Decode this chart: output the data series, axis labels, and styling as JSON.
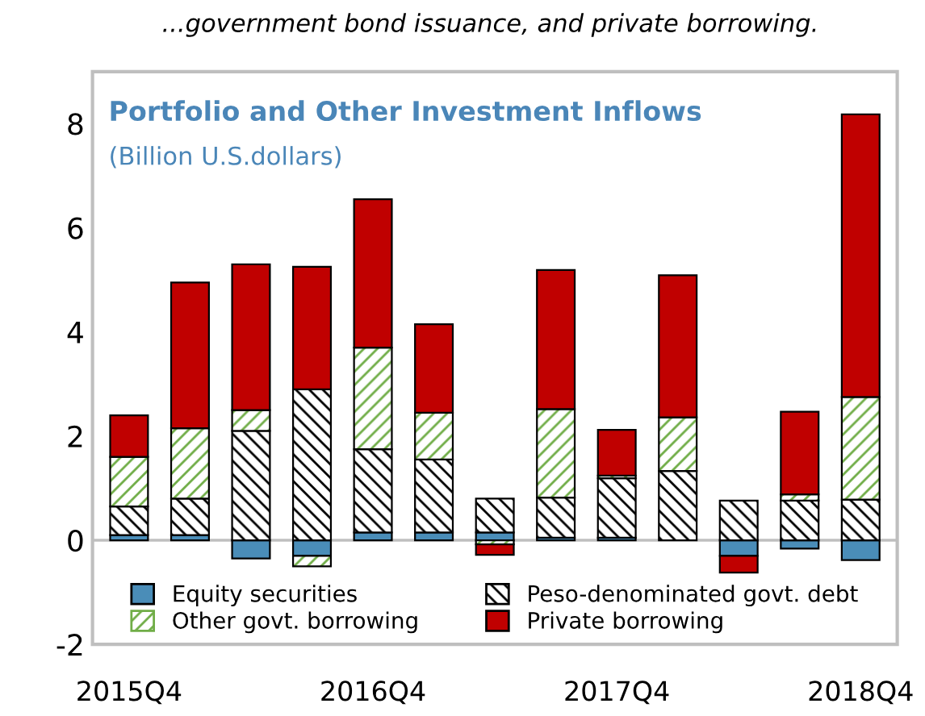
{
  "chart_data": {
    "type": "bar",
    "stacked": true,
    "title": "Portfolio and Other Investment Inflows",
    "subtitle": "(Billion U.S.dollars)",
    "annotations": [
      "...government bond issuance, and private borrowing."
    ],
    "categories": [
      "2015Q4",
      null,
      null,
      null,
      "2016Q4",
      null,
      null,
      null,
      "2017Q4",
      null,
      null,
      null,
      "2018Q4"
    ],
    "series": [
      {
        "name": "Equity securities",
        "color": "#4a8db8",
        "values": [
          0.1,
          0.1,
          -0.35,
          -0.3,
          0.15,
          0.15,
          0.15,
          0.05,
          0.05,
          null,
          -0.3,
          -0.16,
          -0.38
        ]
      },
      {
        "name": "Peso-denominated govt. debt",
        "color": "#000000",
        "values": [
          0.55,
          0.7,
          2.1,
          2.9,
          1.6,
          1.4,
          0.65,
          0.77,
          1.14,
          1.33,
          0.76,
          0.76,
          0.78
        ]
      },
      {
        "name": "Other govt. borrowing",
        "color": "#70ad47",
        "values": [
          0.95,
          1.35,
          0.4,
          -0.2,
          1.95,
          0.9,
          -0.08,
          1.7,
          0.05,
          1.03,
          null,
          0.12,
          1.97
        ]
      },
      {
        "name": "Private borrowing",
        "color": "#c00000",
        "values": [
          0.8,
          2.8,
          2.8,
          2.35,
          2.85,
          1.7,
          -0.2,
          2.67,
          0.88,
          2.73,
          -0.32,
          1.59,
          5.43
        ]
      }
    ],
    "ylim": [
      -2,
      9
    ],
    "yticks": [
      -2,
      0,
      2,
      4,
      6,
      8
    ],
    "ref_lines": [
      {
        "axis": "y",
        "value": 0,
        "color": "#bfbfbf"
      }
    ],
    "grid": false,
    "legend": "bottom"
  }
}
